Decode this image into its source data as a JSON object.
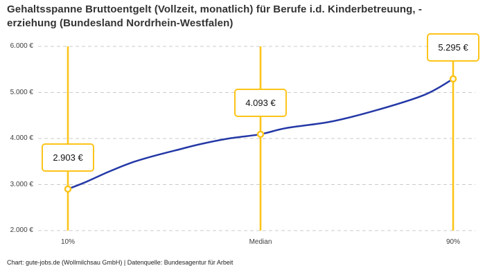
{
  "title_lines": [
    "Gehaltsspanne Bruttoentgelt (Vollzeit, monatlich) für Berufe i.d. Kinderbetreuung, -",
    "erziehung (Bundesland Nordrhein-Westfalen)"
  ],
  "footer": "Chart: gute-jobs.de (Wollmilchsau GmbH) | Datenquelle: Bundesagentur für Arbeit",
  "colors": {
    "accent_yellow": "#FCC419",
    "line_blue": "#2438A6",
    "grid": "#CBCBCB",
    "axis_text": "#3D3D3D",
    "title_text": "#333333",
    "box_text": "#111111"
  },
  "chart_data": {
    "type": "line",
    "title": "Gehaltsspanne Bruttoentgelt (Vollzeit, monatlich) für Berufe i.d. Kinderbetreuung, -erziehung (Bundesland Nordrhein-Westfalen)",
    "xlabel": "",
    "ylabel": "",
    "ylim": [
      2000,
      6000
    ],
    "xlim_percent": [
      10,
      90
    ],
    "grid": "horizontal-dashed",
    "legend": "none",
    "y_ticks": [
      {
        "value": 6000,
        "label": "6.000 €"
      },
      {
        "value": 5000,
        "label": "5.000 €"
      },
      {
        "value": 4000,
        "label": "4.000 €"
      },
      {
        "value": 3000,
        "label": "3.000 €"
      },
      {
        "value": 2000,
        "label": "2.000 €"
      }
    ],
    "x_ticks": [
      {
        "percent": 10,
        "label": "10%"
      },
      {
        "percent": 50,
        "label": "Median"
      },
      {
        "percent": 90,
        "label": "90%"
      }
    ],
    "markers": [
      {
        "percent": 10,
        "value": 2903,
        "label": "2.903 €",
        "name": "p10"
      },
      {
        "percent": 50,
        "value": 4093,
        "label": "4.093 €",
        "name": "median"
      },
      {
        "percent": 90,
        "value": 5295,
        "label": "5.295 €",
        "name": "p90"
      }
    ],
    "curve": [
      {
        "percent": 10,
        "value": 2903
      },
      {
        "percent": 13.6,
        "value": 3050
      },
      {
        "percent": 18.5,
        "value": 3280
      },
      {
        "percent": 23.2,
        "value": 3475
      },
      {
        "percent": 28,
        "value": 3625
      },
      {
        "percent": 33,
        "value": 3760
      },
      {
        "percent": 37.6,
        "value": 3880
      },
      {
        "percent": 43.4,
        "value": 4000
      },
      {
        "percent": 50,
        "value": 4093
      },
      {
        "percent": 55.3,
        "value": 4225
      },
      {
        "percent": 65,
        "value": 4375
      },
      {
        "percent": 74.6,
        "value": 4630
      },
      {
        "percent": 84.1,
        "value": 4950
      },
      {
        "percent": 90,
        "value": 5295
      }
    ]
  }
}
